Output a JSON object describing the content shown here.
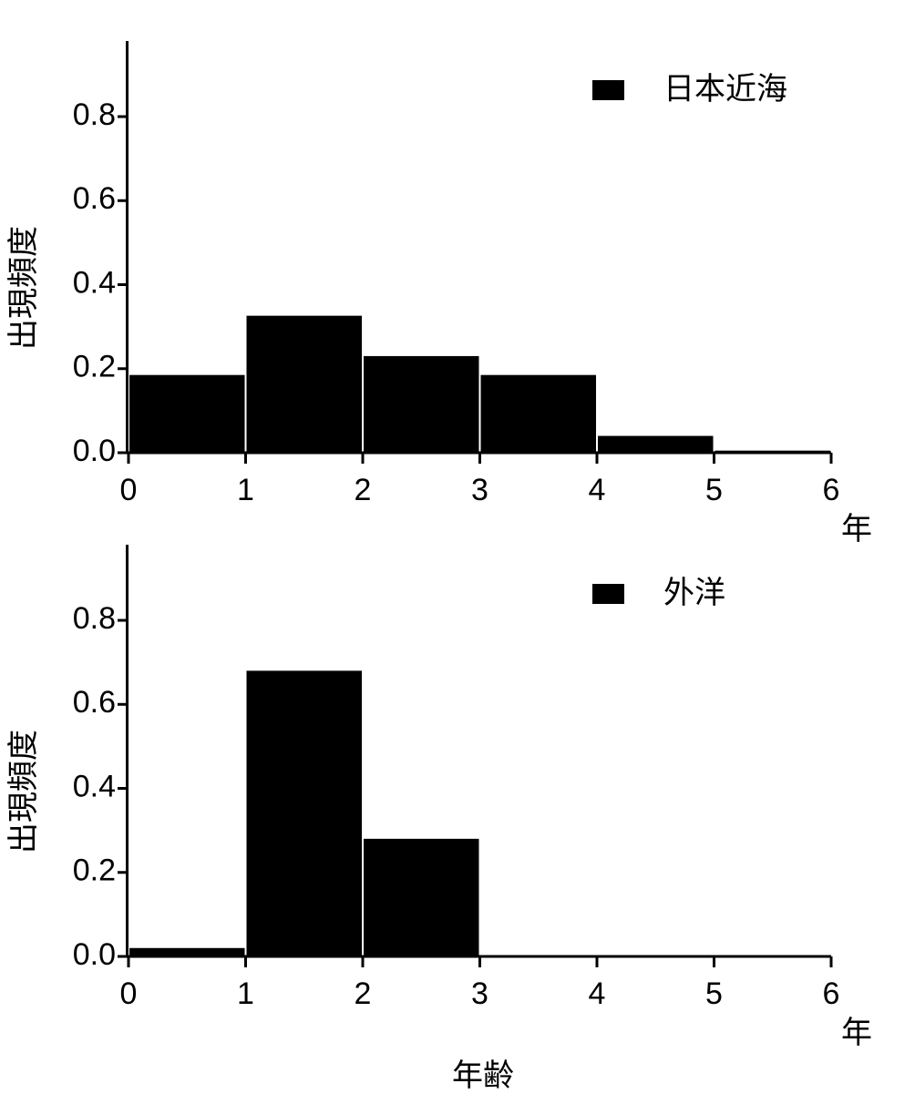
{
  "chart_data": [
    {
      "type": "histogram",
      "bins": [
        0,
        1,
        2,
        3,
        4,
        5,
        6
      ],
      "series": [
        {
          "name": "日本近海",
          "color": "#000000",
          "values": [
            0.185,
            0.326,
            0.23,
            0.185,
            0.04,
            0.005
          ]
        }
      ],
      "xlim": [
        0,
        6
      ],
      "xticks": [
        0,
        1,
        2,
        3,
        4,
        5,
        6
      ],
      "xlabel": "年",
      "ylim": [
        0,
        0.98
      ],
      "yticks": [
        {
          "value": 0,
          "label": "0.0"
        },
        0.2,
        0.4,
        0.6,
        0.8
      ],
      "ylabel": "出現頻度",
      "legend": "upper right"
    },
    {
      "type": "histogram",
      "bins": [
        0,
        1,
        2,
        3,
        4,
        5,
        6
      ],
      "series": [
        {
          "name": "外洋",
          "color": "#000000",
          "values": [
            0.02,
            0.68,
            0.28,
            0,
            0,
            0
          ]
        }
      ],
      "xlim": [
        0,
        6
      ],
      "xticks": [
        0,
        1,
        2,
        3,
        4,
        5,
        6
      ],
      "xlabel": "年",
      "ylim": [
        0,
        0.98
      ],
      "yticks": [
        {
          "value": 0,
          "label": "0.0"
        },
        0.2,
        0.4,
        0.6,
        0.8
      ],
      "ylabel": "出現頻度",
      "legend": "upper right"
    }
  ],
  "xlabel": "年齢"
}
